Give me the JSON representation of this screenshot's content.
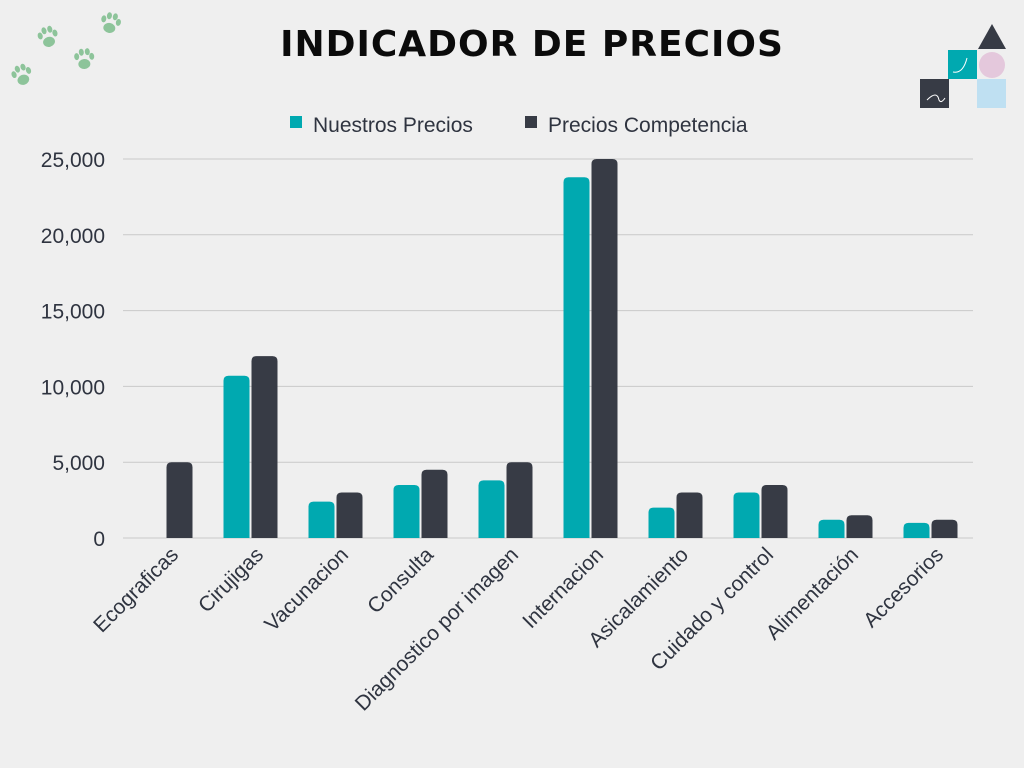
{
  "chart_data": {
    "type": "bar",
    "title": "INDICADOR DE PRECIOS",
    "categories": [
      "Ecograficas",
      "Cirujigas",
      "Vacunacion",
      "Consulta",
      "Diagnostico por imagen",
      "Internacion",
      "Asicalamiento",
      "Cuidado y control",
      "Alimentación",
      "Accesorios"
    ],
    "series": [
      {
        "name": "Nuestros Precios",
        "color": "#00a9b0",
        "values": [
          0,
          10700,
          2400,
          3500,
          3800,
          23800,
          2000,
          3000,
          1200,
          1000
        ]
      },
      {
        "name": "Precios Competencia",
        "color": "#373b45",
        "values": [
          5000,
          12000,
          3000,
          4500,
          5000,
          25000,
          3000,
          3500,
          1500,
          1200
        ]
      }
    ],
    "ylim": [
      0,
      25000
    ],
    "yticks": [
      "0",
      "5,000",
      "10,000",
      "15,000",
      "20,000",
      "25,000"
    ],
    "grid": true,
    "legend_position": "top-center"
  },
  "decor": {
    "paw_color": "#8dc49a",
    "icon_colors": [
      "#373b45",
      "#00a9b0",
      "#e4c8dc",
      "#bfe0f2"
    ]
  }
}
